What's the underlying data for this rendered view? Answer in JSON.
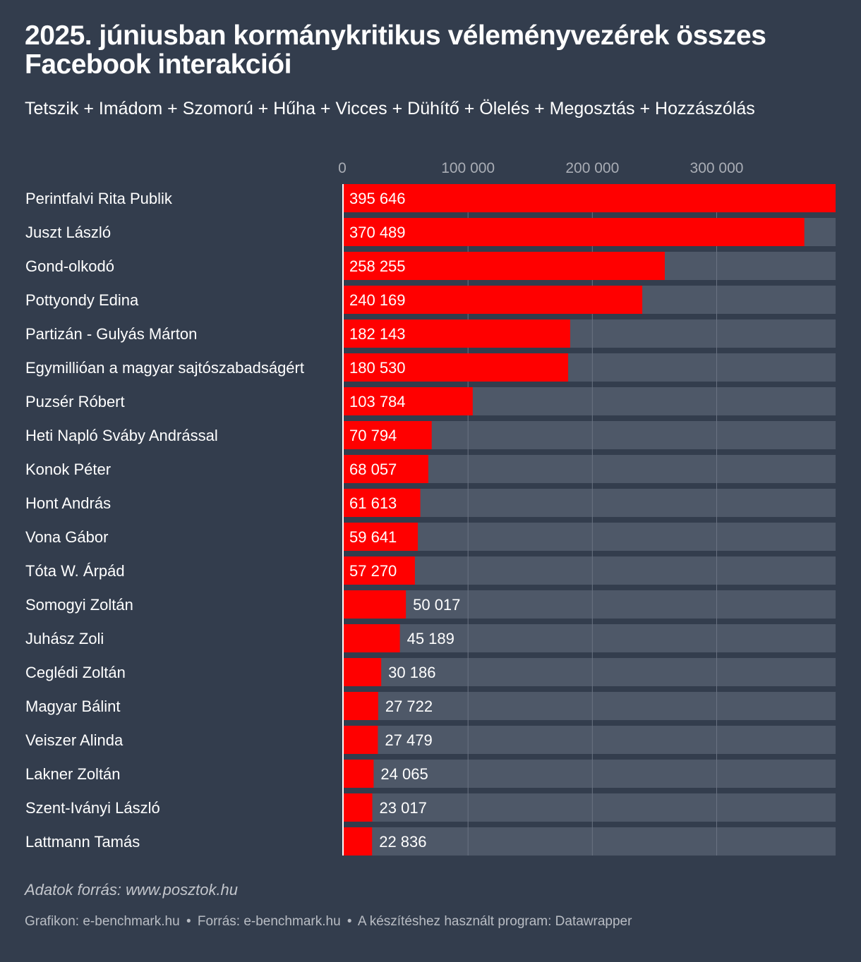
{
  "title": "2025. júniusban kormánykritikus véleményvezérek összes Facebook interakciói",
  "subtitle": "Tetszik + Imádom + Szomorú + Hűha + Vicces + Dühítő + Ölelés + Megosztás + Hozzászólás",
  "note": "Adatok forrás: www.posztok.hu",
  "footer": {
    "graphic": "Grafikon: e-benchmark.hu",
    "source": "Forrás: e-benchmark.hu",
    "tool": "A készítéshez használt program: Datawrapper",
    "separator": "•"
  },
  "colors": {
    "background": "#333d4d",
    "bar": "#ff0000",
    "track": "#4e5868",
    "grid": "#6a7382"
  },
  "chart_data": {
    "type": "bar",
    "orientation": "horizontal",
    "xlim": [
      0,
      395646
    ],
    "x_ticks": [
      0,
      100000,
      200000,
      300000
    ],
    "x_tick_labels": [
      "0",
      "100 000",
      "200 000",
      "300 000"
    ],
    "grid": true,
    "categories": [
      "Perintfalvi Rita Publik",
      "Juszt László",
      "Gond-olkodó",
      "Pottyondy Edina",
      "Partizán - Gulyás Márton",
      "Egymillióan a magyar sajtószabadságért",
      "Puzsér Róbert",
      "Heti Napló Sváby Andrással",
      "Konok Péter",
      "Hont András",
      "Vona Gábor",
      "Tóta W. Árpád",
      "Somogyi Zoltán",
      "Juhász Zoli",
      "Ceglédi Zoltán",
      "Magyar Bálint",
      "Veiszer Alinda",
      "Lakner Zoltán",
      "Szent-Iványi László",
      "Lattmann Tamás"
    ],
    "values": [
      395646,
      370489,
      258255,
      240169,
      182143,
      180530,
      103784,
      70794,
      68057,
      61613,
      59641,
      57270,
      50017,
      45189,
      30186,
      27722,
      27479,
      24065,
      23017,
      22836
    ],
    "value_labels": [
      "395 646",
      "370 489",
      "258 255",
      "240 169",
      "182 143",
      "180 530",
      "103 784",
      "70 794",
      "68 057",
      "61 613",
      "59 641",
      "57 270",
      "50 017",
      "45 189",
      "30 186",
      "27 722",
      "27 479",
      "24 065",
      "23 017",
      "22 836"
    ]
  }
}
